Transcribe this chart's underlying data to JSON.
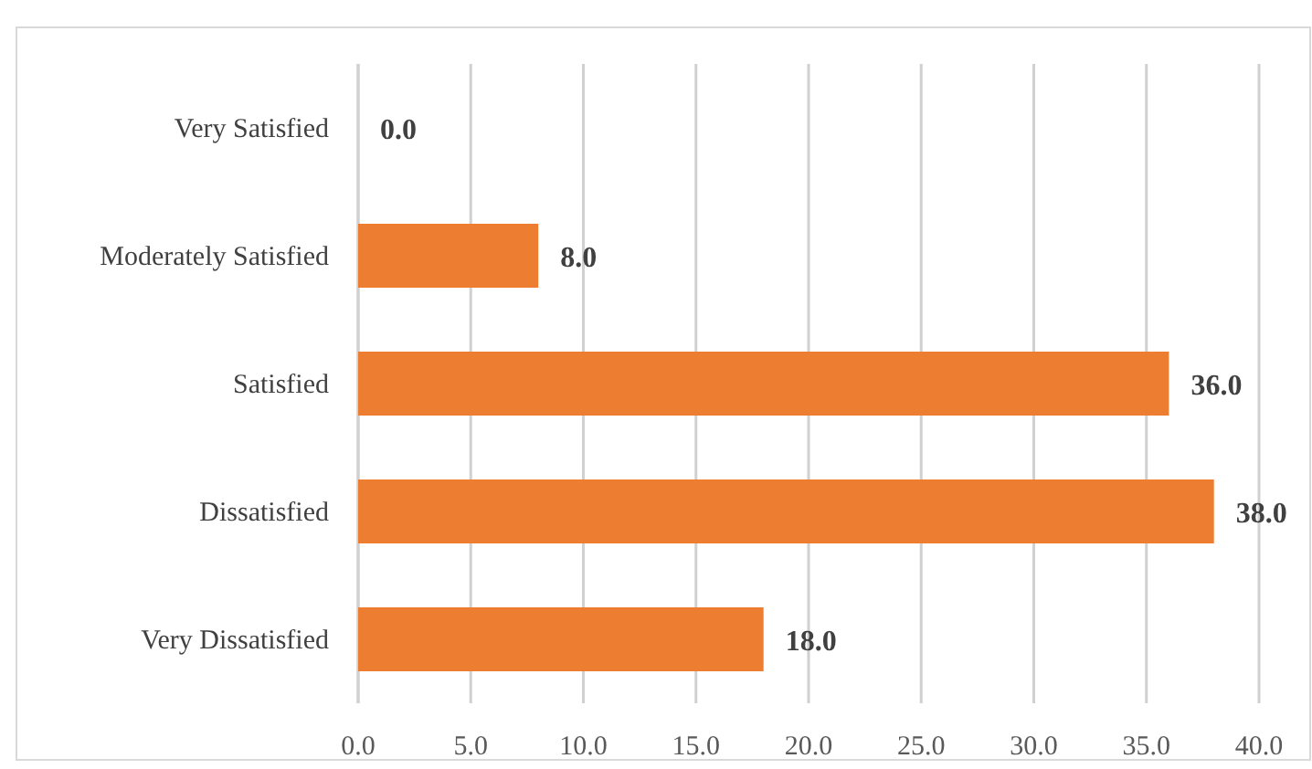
{
  "chart_data": {
    "type": "bar",
    "orientation": "horizontal",
    "categories": [
      "Very Satisfied",
      "Moderately Satisfied",
      "Satisfied",
      "Dissatisfied",
      "Very Dissatisfied"
    ],
    "values": [
      0.0,
      8.0,
      36.0,
      38.0,
      18.0
    ],
    "color": "#ed7d31",
    "value_labels": [
      "0.0",
      "8.0",
      "36.0",
      "38.0",
      "18.0"
    ],
    "xlim": [
      0,
      40
    ],
    "xticks": [
      {
        "value": 0,
        "label": "0.0"
      },
      {
        "value": 5,
        "label": "5.0"
      },
      {
        "value": 10,
        "label": "10.0"
      },
      {
        "value": 15,
        "label": "15.0"
      },
      {
        "value": 20,
        "label": "20.0"
      },
      {
        "value": 25,
        "label": "25.0"
      },
      {
        "value": 30,
        "label": "30.0"
      },
      {
        "value": 35,
        "label": "35.0"
      },
      {
        "value": 40,
        "label": "40.0"
      }
    ],
    "grid": "x"
  }
}
